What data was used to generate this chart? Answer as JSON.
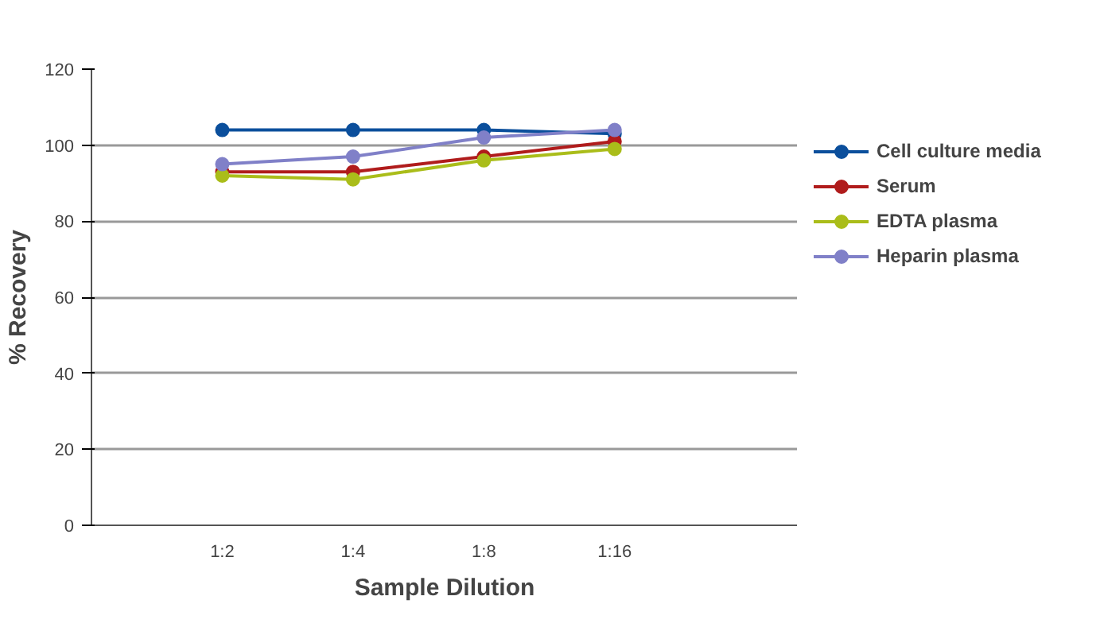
{
  "chart_data": {
    "type": "line",
    "xlabel": "Sample Dilution",
    "ylabel": "% Recovery",
    "categories": [
      "1:2",
      "1:4",
      "1:8",
      "1:16"
    ],
    "series": [
      {
        "name": "Cell culture media",
        "color": "#0b4f9c",
        "values": [
          104,
          104,
          104,
          103
        ]
      },
      {
        "name": "Serum",
        "color": "#b01c1c",
        "values": [
          93,
          93,
          97,
          101
        ]
      },
      {
        "name": "EDTA plasma",
        "color": "#aabd1a",
        "values": [
          92,
          91,
          96,
          99
        ]
      },
      {
        "name": "Heparin plasma",
        "color": "#8080c8",
        "values": [
          95,
          97,
          102,
          104
        ]
      }
    ],
    "ylim": [
      0,
      120
    ],
    "yticks": [
      0,
      20,
      40,
      60,
      80,
      100,
      120
    ],
    "grid": "y",
    "legend": "right",
    "marker": "circle",
    "line_style": "solid"
  }
}
